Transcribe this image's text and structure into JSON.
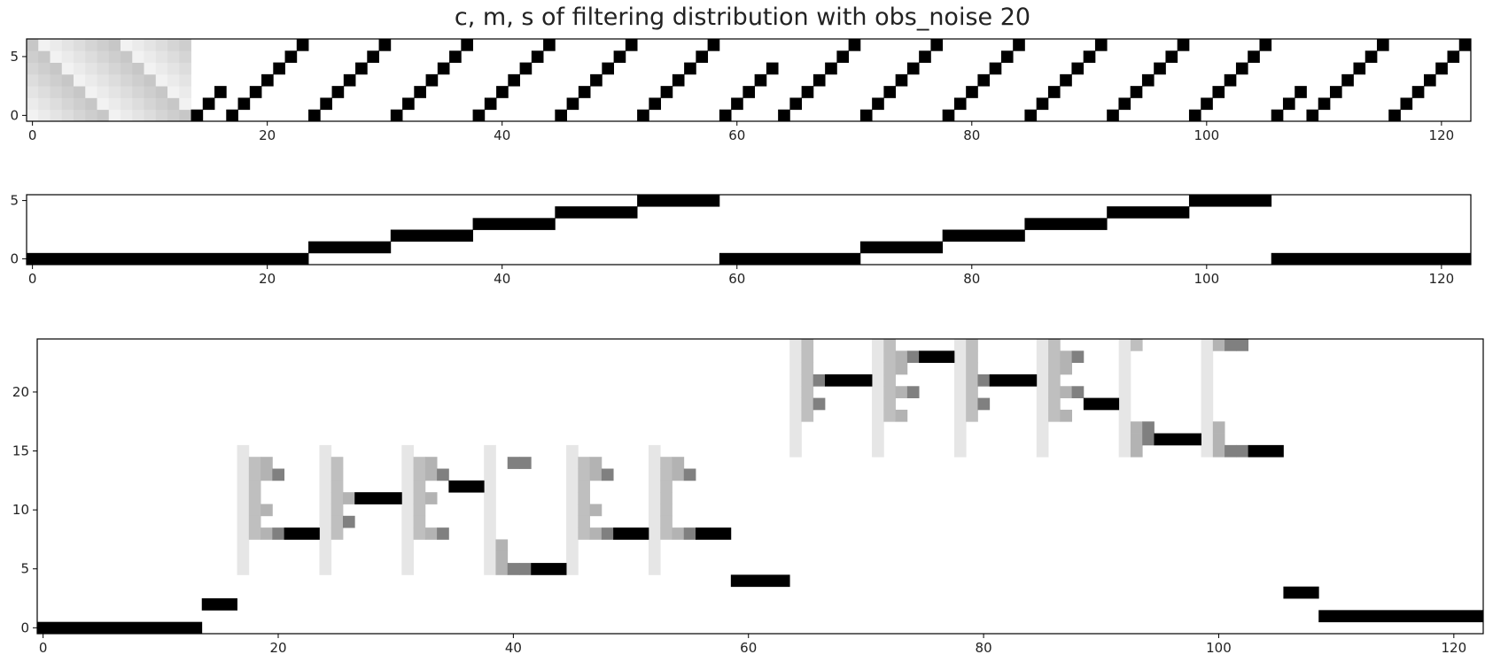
{
  "title": "c, m, s of filtering distribution with obs_noise 20",
  "colors": {
    "ink": "#000000",
    "frame": "#000000",
    "background": "#ffffff"
  },
  "chart_data": [
    {
      "type": "heatmap",
      "name": "c",
      "xlim": [
        -0.5,
        122.5
      ],
      "ylim": [
        -0.5,
        6.5
      ],
      "xticks": [
        0,
        20,
        40,
        60,
        80,
        100,
        120
      ],
      "yticks": [
        0,
        5
      ],
      "xticklabels": [
        "0",
        "20",
        "40",
        "60",
        "80",
        "100",
        "120"
      ],
      "yticklabels": [
        "0",
        "5"
      ],
      "gradient_block": {
        "x_start": 0,
        "x_end": 13,
        "min_intensity": 0.05,
        "max_intensity": 0.22
      },
      "cells": [
        [
          14,
          0
        ],
        [
          15,
          1
        ],
        [
          16,
          2
        ],
        [
          17,
          0
        ],
        [
          18,
          1
        ],
        [
          19,
          2
        ],
        [
          20,
          3
        ],
        [
          21,
          4
        ],
        [
          22,
          5
        ],
        [
          23,
          6
        ],
        [
          24,
          0
        ],
        [
          25,
          1
        ],
        [
          26,
          2
        ],
        [
          27,
          3
        ],
        [
          28,
          4
        ],
        [
          29,
          5
        ],
        [
          30,
          6
        ],
        [
          31,
          0
        ],
        [
          32,
          1
        ],
        [
          33,
          2
        ],
        [
          34,
          3
        ],
        [
          35,
          4
        ],
        [
          36,
          5
        ],
        [
          37,
          6
        ],
        [
          38,
          0
        ],
        [
          39,
          1
        ],
        [
          40,
          2
        ],
        [
          41,
          3
        ],
        [
          42,
          4
        ],
        [
          43,
          5
        ],
        [
          44,
          6
        ],
        [
          45,
          0
        ],
        [
          46,
          1
        ],
        [
          47,
          2
        ],
        [
          48,
          3
        ],
        [
          49,
          4
        ],
        [
          50,
          5
        ],
        [
          51,
          6
        ],
        [
          52,
          0
        ],
        [
          53,
          1
        ],
        [
          54,
          2
        ],
        [
          55,
          3
        ],
        [
          56,
          4
        ],
        [
          57,
          5
        ],
        [
          58,
          6
        ],
        [
          59,
          0
        ],
        [
          60,
          1
        ],
        [
          61,
          2
        ],
        [
          62,
          3
        ],
        [
          63,
          4
        ],
        [
          64,
          0
        ],
        [
          65,
          1
        ],
        [
          66,
          2
        ],
        [
          67,
          3
        ],
        [
          68,
          4
        ],
        [
          69,
          5
        ],
        [
          70,
          6
        ],
        [
          71,
          0
        ],
        [
          72,
          1
        ],
        [
          73,
          2
        ],
        [
          74,
          3
        ],
        [
          75,
          4
        ],
        [
          76,
          5
        ],
        [
          77,
          6
        ],
        [
          78,
          0
        ],
        [
          79,
          1
        ],
        [
          80,
          2
        ],
        [
          81,
          3
        ],
        [
          82,
          4
        ],
        [
          83,
          5
        ],
        [
          84,
          6
        ],
        [
          85,
          0
        ],
        [
          86,
          1
        ],
        [
          87,
          2
        ],
        [
          88,
          3
        ],
        [
          89,
          4
        ],
        [
          90,
          5
        ],
        [
          91,
          6
        ],
        [
          92,
          0
        ],
        [
          93,
          1
        ],
        [
          94,
          2
        ],
        [
          95,
          3
        ],
        [
          96,
          4
        ],
        [
          97,
          5
        ],
        [
          98,
          6
        ],
        [
          99,
          0
        ],
        [
          100,
          1
        ],
        [
          101,
          2
        ],
        [
          102,
          3
        ],
        [
          103,
          4
        ],
        [
          104,
          5
        ],
        [
          105,
          6
        ],
        [
          106,
          0
        ],
        [
          107,
          1
        ],
        [
          108,
          2
        ],
        [
          109,
          0
        ],
        [
          110,
          1
        ],
        [
          111,
          2
        ],
        [
          112,
          3
        ],
        [
          113,
          4
        ],
        [
          114,
          5
        ],
        [
          115,
          6
        ],
        [
          116,
          0
        ],
        [
          117,
          1
        ],
        [
          118,
          2
        ],
        [
          119,
          3
        ],
        [
          120,
          4
        ],
        [
          121,
          5
        ],
        [
          122,
          6
        ]
      ]
    },
    {
      "type": "heatmap",
      "name": "m",
      "xlim": [
        -0.5,
        122.5
      ],
      "ylim": [
        -0.5,
        5.5
      ],
      "xticks": [
        0,
        20,
        40,
        60,
        80,
        100,
        120
      ],
      "yticks": [
        0,
        5
      ],
      "xticklabels": [
        "0",
        "20",
        "40",
        "60",
        "80",
        "100",
        "120"
      ],
      "yticklabels": [
        "0",
        "5"
      ],
      "runs": [
        [
          0,
          23,
          0
        ],
        [
          24,
          30,
          1
        ],
        [
          31,
          37,
          2
        ],
        [
          38,
          44,
          3
        ],
        [
          45,
          51,
          4
        ],
        [
          52,
          58,
          5
        ],
        [
          59,
          70,
          0
        ],
        [
          71,
          77,
          1
        ],
        [
          78,
          84,
          2
        ],
        [
          85,
          91,
          3
        ],
        [
          92,
          98,
          4
        ],
        [
          99,
          105,
          5
        ],
        [
          106,
          122,
          0
        ]
      ]
    },
    {
      "type": "heatmap",
      "name": "s",
      "xlim": [
        -0.5,
        122.5
      ],
      "ylim": [
        -0.5,
        24.5
      ],
      "xticks": [
        0,
        20,
        40,
        60,
        80,
        100,
        120
      ],
      "yticks": [
        0,
        5,
        10,
        15,
        20
      ],
      "xticklabels": [
        "0",
        "20",
        "40",
        "60",
        "80",
        "100",
        "120"
      ],
      "yticklabels": [
        "0",
        "5",
        "10",
        "15",
        "20"
      ],
      "black_runs": [
        [
          0,
          13,
          0
        ],
        [
          14,
          16,
          2
        ],
        [
          21,
          23,
          8
        ],
        [
          27,
          30,
          11
        ],
        [
          35,
          37,
          12
        ],
        [
          42,
          44,
          5
        ],
        [
          49,
          51,
          8
        ],
        [
          56,
          58,
          8
        ],
        [
          59,
          63,
          4
        ],
        [
          67,
          70,
          21
        ],
        [
          75,
          77,
          23
        ],
        [
          81,
          84,
          21
        ],
        [
          89,
          91,
          19
        ],
        [
          95,
          98,
          16
        ],
        [
          103,
          105,
          15
        ],
        [
          106,
          108,
          3
        ],
        [
          109,
          122,
          1
        ]
      ],
      "columns": [
        {
          "x": 17,
          "y0": 5,
          "y1": 15,
          "shade": 0.1
        },
        {
          "x": 24,
          "y0": 5,
          "y1": 15,
          "shade": 0.1
        },
        {
          "x": 31,
          "y0": 5,
          "y1": 15,
          "shade": 0.1
        },
        {
          "x": 38,
          "y0": 5,
          "y1": 15,
          "shade": 0.1
        },
        {
          "x": 45,
          "y0": 5,
          "y1": 15,
          "shade": 0.1
        },
        {
          "x": 52,
          "y0": 5,
          "y1": 15,
          "shade": 0.1
        },
        {
          "x": 64,
          "y0": 15,
          "y1": 24,
          "shade": 0.1
        },
        {
          "x": 71,
          "y0": 15,
          "y1": 24,
          "shade": 0.1
        },
        {
          "x": 78,
          "y0": 15,
          "y1": 24,
          "shade": 0.1
        },
        {
          "x": 85,
          "y0": 15,
          "y1": 24,
          "shade": 0.1
        },
        {
          "x": 92,
          "y0": 15,
          "y1": 24,
          "shade": 0.1
        },
        {
          "x": 99,
          "y0": 15,
          "y1": 24,
          "shade": 0.1
        }
      ],
      "cells": [
        [
          18,
          14,
          0.25
        ],
        [
          18,
          13,
          0.25
        ],
        [
          18,
          12,
          0.25
        ],
        [
          18,
          11,
          0.25
        ],
        [
          18,
          10,
          0.25
        ],
        [
          18,
          9,
          0.25
        ],
        [
          18,
          8,
          0.25
        ],
        [
          19,
          14,
          0.3
        ],
        [
          19,
          13,
          0.3
        ],
        [
          19,
          10,
          0.3
        ],
        [
          19,
          8,
          0.3
        ],
        [
          20,
          13,
          0.5
        ],
        [
          20,
          8,
          0.5
        ],
        [
          25,
          14,
          0.25
        ],
        [
          25,
          13,
          0.25
        ],
        [
          25,
          12,
          0.25
        ],
        [
          25,
          11,
          0.25
        ],
        [
          25,
          10,
          0.25
        ],
        [
          25,
          9,
          0.25
        ],
        [
          25,
          8,
          0.25
        ],
        [
          26,
          11,
          0.3
        ],
        [
          26,
          9,
          0.5
        ],
        [
          32,
          14,
          0.25
        ],
        [
          32,
          13,
          0.25
        ],
        [
          32,
          12,
          0.25
        ],
        [
          32,
          11,
          0.25
        ],
        [
          32,
          10,
          0.25
        ],
        [
          32,
          9,
          0.25
        ],
        [
          32,
          8,
          0.25
        ],
        [
          33,
          14,
          0.3
        ],
        [
          33,
          13,
          0.3
        ],
        [
          33,
          11,
          0.3
        ],
        [
          33,
          8,
          0.3
        ],
        [
          34,
          13,
          0.5
        ],
        [
          34,
          8,
          0.5
        ],
        [
          39,
          7,
          0.3
        ],
        [
          39,
          6,
          0.3
        ],
        [
          39,
          5,
          0.3
        ],
        [
          40,
          14,
          0.5
        ],
        [
          40,
          5,
          0.5
        ],
        [
          41,
          14,
          0.5
        ],
        [
          41,
          5,
          0.5
        ],
        [
          46,
          14,
          0.25
        ],
        [
          46,
          13,
          0.25
        ],
        [
          46,
          12,
          0.25
        ],
        [
          46,
          11,
          0.25
        ],
        [
          46,
          10,
          0.25
        ],
        [
          46,
          9,
          0.25
        ],
        [
          46,
          8,
          0.25
        ],
        [
          47,
          14,
          0.3
        ],
        [
          47,
          13,
          0.3
        ],
        [
          47,
          10,
          0.3
        ],
        [
          47,
          8,
          0.3
        ],
        [
          48,
          13,
          0.5
        ],
        [
          48,
          8,
          0.5
        ],
        [
          53,
          14,
          0.25
        ],
        [
          53,
          13,
          0.25
        ],
        [
          53,
          12,
          0.25
        ],
        [
          53,
          11,
          0.25
        ],
        [
          53,
          10,
          0.25
        ],
        [
          53,
          9,
          0.25
        ],
        [
          53,
          8,
          0.25
        ],
        [
          54,
          14,
          0.3
        ],
        [
          54,
          13,
          0.3
        ],
        [
          54,
          8,
          0.3
        ],
        [
          55,
          13,
          0.5
        ],
        [
          55,
          8,
          0.5
        ],
        [
          65,
          24,
          0.25
        ],
        [
          65,
          23,
          0.25
        ],
        [
          65,
          22,
          0.25
        ],
        [
          65,
          21,
          0.25
        ],
        [
          65,
          20,
          0.25
        ],
        [
          65,
          19,
          0.25
        ],
        [
          65,
          18,
          0.25
        ],
        [
          66,
          21,
          0.5
        ],
        [
          66,
          19,
          0.5
        ],
        [
          72,
          24,
          0.25
        ],
        [
          72,
          23,
          0.25
        ],
        [
          72,
          22,
          0.25
        ],
        [
          72,
          21,
          0.25
        ],
        [
          72,
          20,
          0.25
        ],
        [
          72,
          19,
          0.25
        ],
        [
          72,
          18,
          0.25
        ],
        [
          73,
          23,
          0.3
        ],
        [
          73,
          22,
          0.3
        ],
        [
          73,
          20,
          0.3
        ],
        [
          73,
          18,
          0.3
        ],
        [
          74,
          23,
          0.5
        ],
        [
          74,
          20,
          0.5
        ],
        [
          79,
          24,
          0.25
        ],
        [
          79,
          23,
          0.25
        ],
        [
          79,
          22,
          0.25
        ],
        [
          79,
          21,
          0.25
        ],
        [
          79,
          20,
          0.25
        ],
        [
          79,
          19,
          0.25
        ],
        [
          79,
          18,
          0.25
        ],
        [
          80,
          21,
          0.5
        ],
        [
          80,
          19,
          0.5
        ],
        [
          86,
          24,
          0.25
        ],
        [
          86,
          23,
          0.25
        ],
        [
          86,
          22,
          0.25
        ],
        [
          86,
          21,
          0.25
        ],
        [
          86,
          20,
          0.25
        ],
        [
          86,
          19,
          0.25
        ],
        [
          86,
          18,
          0.25
        ],
        [
          87,
          23,
          0.3
        ],
        [
          87,
          22,
          0.3
        ],
        [
          87,
          20,
          0.3
        ],
        [
          87,
          18,
          0.3
        ],
        [
          88,
          23,
          0.5
        ],
        [
          88,
          20,
          0.5
        ],
        [
          93,
          24,
          0.25
        ],
        [
          93,
          17,
          0.3
        ],
        [
          93,
          16,
          0.3
        ],
        [
          93,
          15,
          0.3
        ],
        [
          94,
          17,
          0.5
        ],
        [
          94,
          16,
          0.5
        ],
        [
          100,
          24,
          0.3
        ],
        [
          100,
          17,
          0.3
        ],
        [
          100,
          16,
          0.3
        ],
        [
          100,
          15,
          0.3
        ],
        [
          101,
          24,
          0.5
        ],
        [
          101,
          15,
          0.5
        ],
        [
          102,
          24,
          0.5
        ],
        [
          102,
          15,
          0.5
        ]
      ]
    }
  ]
}
